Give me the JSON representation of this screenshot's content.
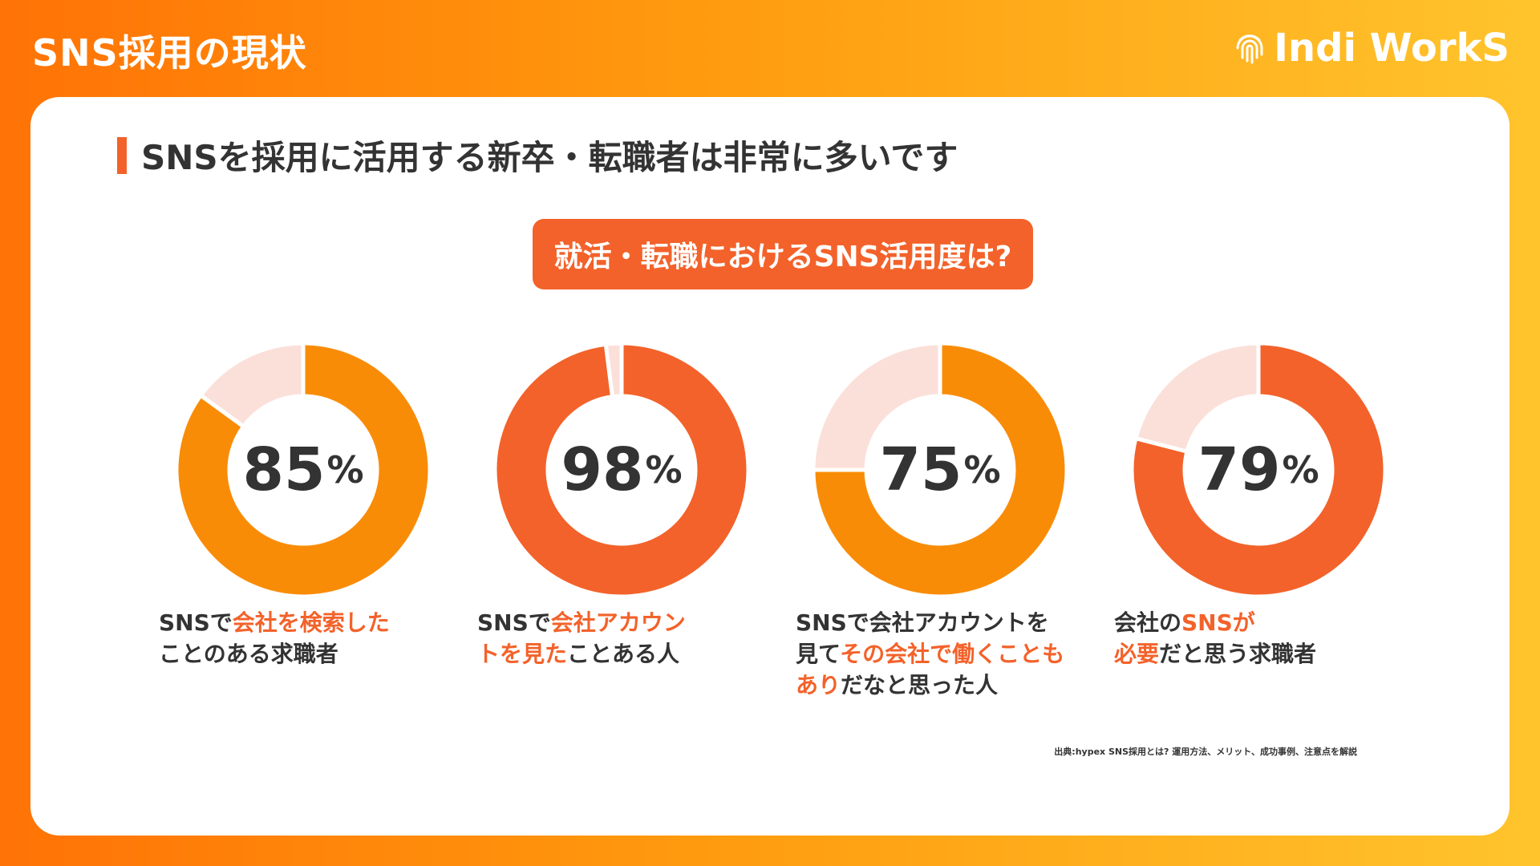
{
  "page": {
    "title": "SNS採用の現状",
    "logo_text": "Indi WorkS"
  },
  "card": {
    "heading": "SNSを採用に活用する新卒・転職者は非常に多いです",
    "question": "就活・転職におけるSNS活用度は?",
    "source": "出典:hypex SNS採用とは? 運用方法、メリット、成功事例、注意点を解説"
  },
  "colors": {
    "accent_red": "#f3622a",
    "accent_orange": "#f98c07",
    "remainder": "#fbe0da",
    "text": "#333333"
  },
  "chart_data": [
    {
      "type": "pie",
      "percent": 85,
      "value_label": "85",
      "unit": "%",
      "color": "#f98c07",
      "caption": [
        [
          {
            "t": "SNSで",
            "hl": false
          },
          {
            "t": "会社を検索した",
            "hl": true
          }
        ],
        [
          {
            "t": "ことのある求職者",
            "hl": false
          }
        ]
      ]
    },
    {
      "type": "pie",
      "percent": 98,
      "value_label": "98",
      "unit": "%",
      "color": "#f3622a",
      "caption": [
        [
          {
            "t": "SNSで",
            "hl": false
          },
          {
            "t": "会社アカウン",
            "hl": true
          }
        ],
        [
          {
            "t": "トを見た",
            "hl": true
          },
          {
            "t": "ことある人",
            "hl": false
          }
        ]
      ]
    },
    {
      "type": "pie",
      "percent": 75,
      "value_label": "75",
      "unit": "%",
      "color": "#f98c07",
      "caption": [
        [
          {
            "t": "SNSで会社アカウントを",
            "hl": false
          }
        ],
        [
          {
            "t": "見て",
            "hl": false
          },
          {
            "t": "その会社で働くことも",
            "hl": true
          }
        ],
        [
          {
            "t": "あり",
            "hl": true
          },
          {
            "t": "だなと思った人",
            "hl": false
          }
        ]
      ]
    },
    {
      "type": "pie",
      "percent": 79,
      "value_label": "79",
      "unit": "%",
      "color": "#f3622a",
      "caption": [
        [
          {
            "t": "会社の",
            "hl": false
          },
          {
            "t": "SNSが",
            "hl": true
          }
        ],
        [
          {
            "t": "必要",
            "hl": true
          },
          {
            "t": "だと思う求職者",
            "hl": false
          }
        ]
      ]
    }
  ]
}
